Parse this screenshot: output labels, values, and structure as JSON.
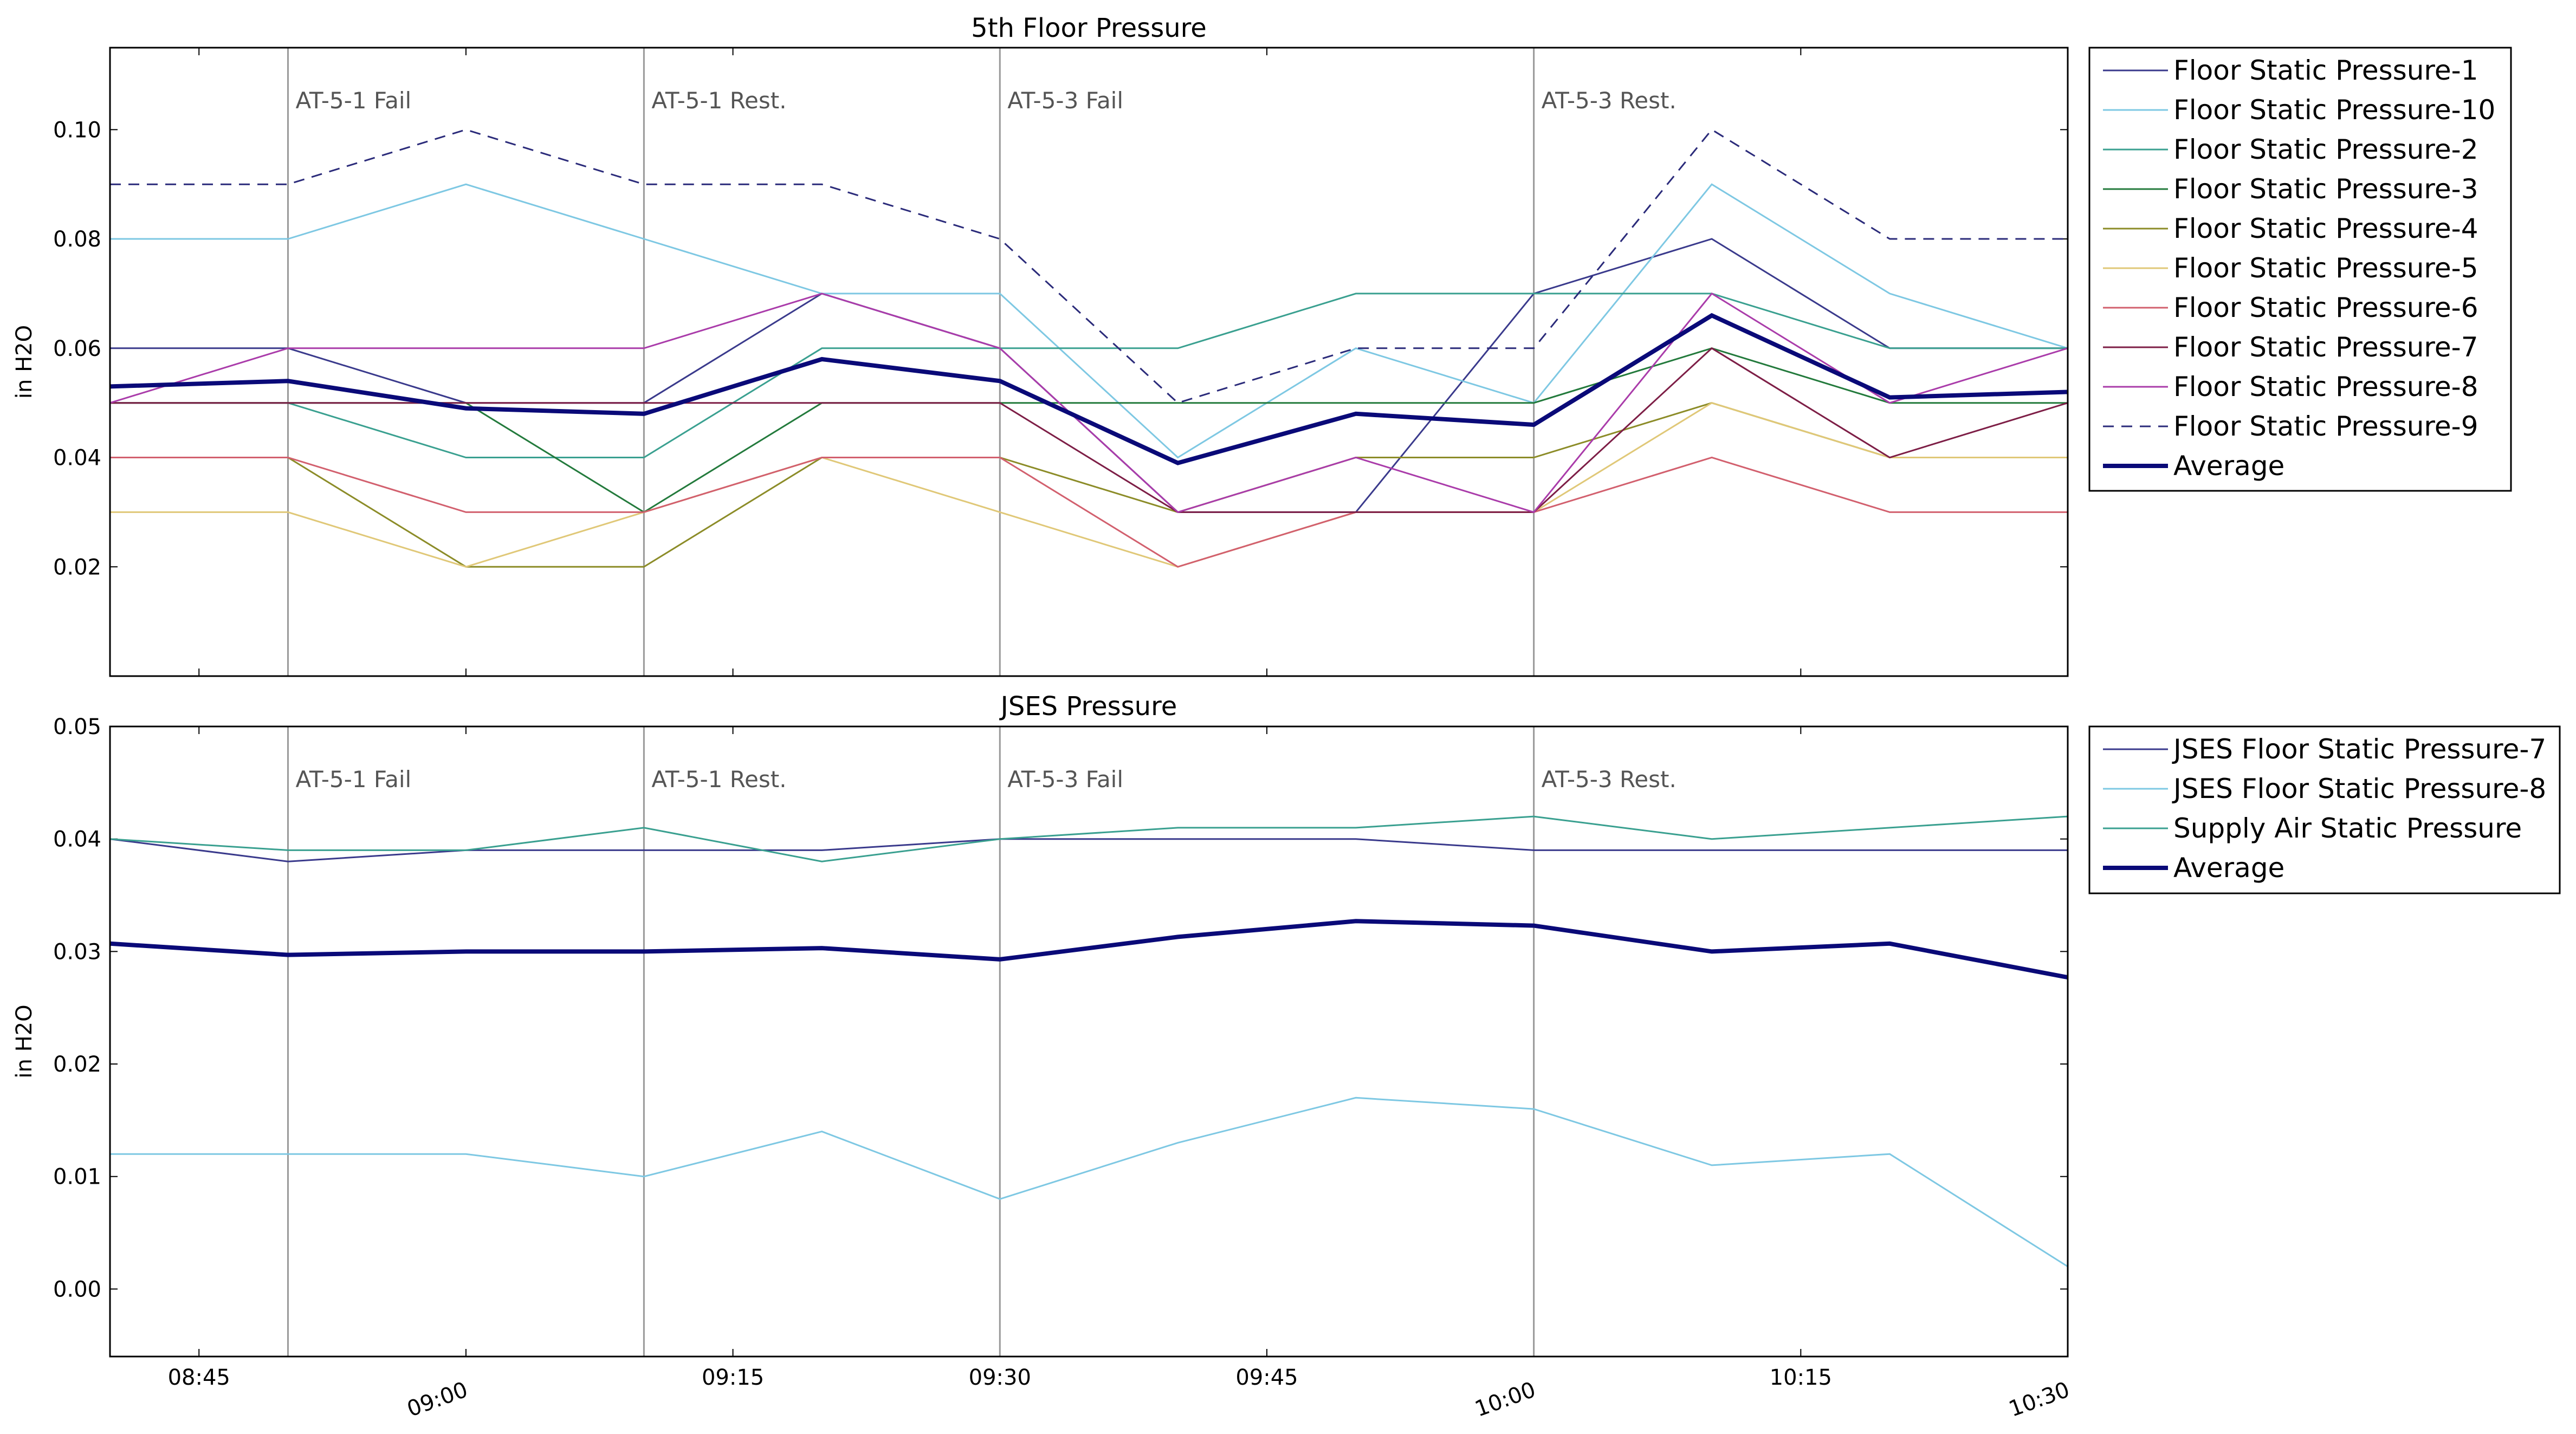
{
  "chart_data": [
    {
      "type": "line",
      "title": "5th Floor Pressure",
      "xlabel": "",
      "ylabel": "in H2O",
      "ylim": [
        0.0,
        0.115
      ],
      "yticks": [
        "0.02",
        "0.04",
        "0.06",
        "0.08",
        "0.10"
      ],
      "xticks": [
        "08:45",
        "09:00",
        "09:15",
        "09:30",
        "09:45",
        "10:00",
        "10:15",
        "10:30"
      ],
      "x": [
        "08:40",
        "08:50",
        "09:00",
        "09:10",
        "09:20",
        "09:30",
        "09:40",
        "09:50",
        "10:00",
        "10:10",
        "10:20",
        "10:30"
      ],
      "legend_placement": "outside-right",
      "grid": false,
      "events": [
        {
          "time": "08:50",
          "label": "AT-5-1 Fail"
        },
        {
          "time": "09:10",
          "label": "AT-5-1 Rest."
        },
        {
          "time": "09:30",
          "label": "AT-5-3 Fail"
        },
        {
          "time": "10:00",
          "label": "AT-5-3 Rest."
        }
      ],
      "series": [
        {
          "name": "Floor Static Pressure-1",
          "color": "#3a3a8c",
          "values": [
            0.06,
            0.06,
            0.05,
            0.05,
            0.07,
            0.06,
            0.03,
            0.03,
            0.07,
            0.08,
            0.06,
            0.06
          ]
        },
        {
          "name": "Floor Static Pressure-10",
          "color": "#7ec8e3",
          "values": [
            0.08,
            0.08,
            0.09,
            0.08,
            0.07,
            0.07,
            0.04,
            0.06,
            0.05,
            0.09,
            0.07,
            0.06
          ]
        },
        {
          "name": "Floor Static Pressure-2",
          "color": "#3aa090",
          "values": [
            0.05,
            0.05,
            0.04,
            0.04,
            0.06,
            0.06,
            0.06,
            0.07,
            0.07,
            0.07,
            0.06,
            0.06
          ]
        },
        {
          "name": "Floor Static Pressure-3",
          "color": "#237a3c",
          "values": [
            0.05,
            0.05,
            0.05,
            0.03,
            0.05,
            0.05,
            0.05,
            0.05,
            0.05,
            0.06,
            0.05,
            0.05
          ]
        },
        {
          "name": "Floor Static Pressure-4",
          "color": "#8c8c28",
          "values": [
            0.04,
            0.04,
            0.02,
            0.02,
            0.04,
            0.04,
            0.03,
            0.04,
            0.04,
            0.05,
            0.04,
            0.04
          ]
        },
        {
          "name": "Floor Static Pressure-5",
          "color": "#e0c878",
          "values": [
            0.03,
            0.03,
            0.02,
            0.03,
            0.04,
            0.03,
            0.02,
            0.03,
            0.03,
            0.05,
            0.04,
            0.04
          ]
        },
        {
          "name": "Floor Static Pressure-6",
          "color": "#d2606e",
          "values": [
            0.04,
            0.04,
            0.03,
            0.03,
            0.04,
            0.04,
            0.02,
            0.03,
            0.03,
            0.04,
            0.03,
            0.03
          ]
        },
        {
          "name": "Floor Static Pressure-7",
          "color": "#7d1e46",
          "values": [
            0.05,
            0.05,
            0.05,
            0.05,
            0.05,
            0.05,
            0.03,
            0.03,
            0.03,
            0.06,
            0.04,
            0.05
          ]
        },
        {
          "name": "Floor Static Pressure-8",
          "color": "#aa3caa",
          "values": [
            0.05,
            0.06,
            0.06,
            0.06,
            0.07,
            0.06,
            0.03,
            0.04,
            0.03,
            0.07,
            0.05,
            0.06
          ]
        },
        {
          "name": "Floor Static Pressure-9",
          "color": "#2b2b7a",
          "dashed": true,
          "values": [
            0.09,
            0.09,
            0.1,
            0.09,
            0.09,
            0.08,
            0.05,
            0.06,
            0.06,
            0.1,
            0.08,
            0.08
          ]
        },
        {
          "name": "Average",
          "color": "#0a0a78",
          "thick": true,
          "values": [
            0.053,
            0.054,
            0.049,
            0.048,
            0.058,
            0.054,
            0.039,
            0.048,
            0.046,
            0.066,
            0.051,
            0.052
          ]
        }
      ]
    },
    {
      "type": "line",
      "title": "JSES Pressure",
      "xlabel": "",
      "ylabel": "in H2O",
      "ylim": [
        -0.006,
        0.05
      ],
      "yticks": [
        "0.00",
        "0.01",
        "0.02",
        "0.03",
        "0.04",
        "0.05"
      ],
      "xticks": [
        "08:45",
        "09:00",
        "09:15",
        "09:30",
        "09:45",
        "10:00",
        "10:15",
        "10:30"
      ],
      "x": [
        "08:40",
        "08:50",
        "09:00",
        "09:10",
        "09:20",
        "09:30",
        "09:40",
        "09:50",
        "10:00",
        "10:10",
        "10:20",
        "10:30"
      ],
      "legend_placement": "outside-right",
      "grid": false,
      "events": [
        {
          "time": "08:50",
          "label": "AT-5-1 Fail"
        },
        {
          "time": "09:10",
          "label": "AT-5-1 Rest."
        },
        {
          "time": "09:30",
          "label": "AT-5-3 Fail"
        },
        {
          "time": "10:00",
          "label": "AT-5-3 Rest."
        }
      ],
      "series": [
        {
          "name": "JSES Floor Static Pressure-7",
          "color": "#3a3a8c",
          "values": [
            0.04,
            0.038,
            0.039,
            0.039,
            0.039,
            0.04,
            0.04,
            0.04,
            0.039,
            0.039,
            0.039,
            0.039
          ]
        },
        {
          "name": "JSES Floor Static Pressure-8",
          "color": "#7ec8e3",
          "values": [
            0.012,
            0.012,
            0.012,
            0.01,
            0.014,
            0.008,
            0.013,
            0.017,
            0.016,
            0.011,
            0.012,
            0.002
          ]
        },
        {
          "name": "Supply Air Static Pressure",
          "color": "#3aa090",
          "values": [
            0.04,
            0.039,
            0.039,
            0.041,
            0.038,
            0.04,
            0.041,
            0.041,
            0.042,
            0.04,
            0.041,
            0.042
          ]
        },
        {
          "name": "Average",
          "color": "#0a0a78",
          "thick": true,
          "values": [
            0.0307,
            0.0297,
            0.03,
            0.03,
            0.0303,
            0.0293,
            0.0313,
            0.0327,
            0.0323,
            0.03,
            0.0307,
            0.0277
          ]
        }
      ]
    }
  ]
}
